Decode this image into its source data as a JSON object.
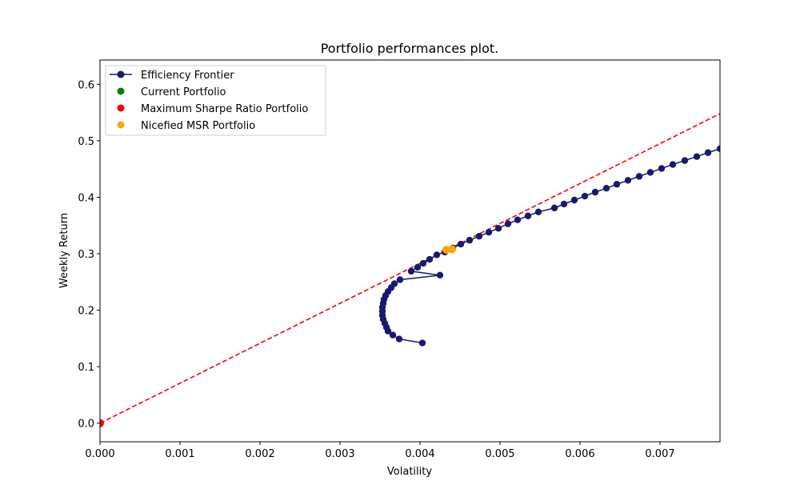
{
  "chart_data": {
    "type": "scatter",
    "title": "Portfolio performances plot.",
    "xlabel": "Volatility",
    "ylabel": "Weekly Return",
    "xlim": [
      0,
      0.00775
    ],
    "ylim": [
      -0.033,
      0.643
    ],
    "xticks": [
      0,
      0.001,
      0.002,
      0.003,
      0.004,
      0.005,
      0.006,
      0.007
    ],
    "xtick_labels": [
      "0.000",
      "0.001",
      "0.002",
      "0.003",
      "0.004",
      "0.005",
      "0.006",
      "0.007"
    ],
    "yticks": [
      0,
      0.1,
      0.2,
      0.3,
      0.4,
      0.5,
      0.6
    ],
    "ytick_labels": [
      "0.0",
      "0.1",
      "0.2",
      "0.3",
      "0.4",
      "0.5",
      "0.6"
    ],
    "grid": false,
    "legend_position": "top-left",
    "series": [
      {
        "name": "Efficiency Frontier",
        "kind": "line-markers",
        "color": "#191970",
        "points": [
          [
            0.00403,
            0.142
          ],
          [
            0.00374,
            0.149
          ],
          [
            0.00366,
            0.156
          ],
          [
            0.0036,
            0.163
          ],
          [
            0.00358,
            0.17
          ],
          [
            0.00356,
            0.177
          ],
          [
            0.00354,
            0.184
          ],
          [
            0.00353,
            0.191
          ],
          [
            0.00353,
            0.198
          ],
          [
            0.00353,
            0.205
          ],
          [
            0.00354,
            0.212
          ],
          [
            0.00355,
            0.219
          ],
          [
            0.00357,
            0.226
          ],
          [
            0.0036,
            0.233
          ],
          [
            0.00364,
            0.24
          ],
          [
            0.00368,
            0.247
          ],
          [
            0.00375,
            0.254
          ],
          [
            0.00425,
            0.262
          ],
          [
            0.00389,
            0.269
          ],
          [
            0.00397,
            0.276
          ],
          [
            0.00404,
            0.283
          ],
          [
            0.00412,
            0.29
          ],
          [
            0.00421,
            0.298
          ],
          [
            0.00431,
            0.303
          ],
          [
            0.00441,
            0.31
          ],
          [
            0.00451,
            0.317
          ],
          [
            0.00462,
            0.324
          ],
          [
            0.00474,
            0.331
          ],
          [
            0.00486,
            0.338
          ],
          [
            0.00498,
            0.345
          ],
          [
            0.0051,
            0.353
          ],
          [
            0.00522,
            0.36
          ],
          [
            0.00535,
            0.367
          ],
          [
            0.00548,
            0.374
          ],
          [
            0.00568,
            0.381
          ],
          [
            0.0058,
            0.388
          ],
          [
            0.00593,
            0.395
          ],
          [
            0.00606,
            0.402
          ],
          [
            0.00619,
            0.409
          ],
          [
            0.00633,
            0.416
          ],
          [
            0.00646,
            0.423
          ],
          [
            0.0066,
            0.43
          ],
          [
            0.00674,
            0.437
          ],
          [
            0.00688,
            0.444
          ],
          [
            0.00702,
            0.451
          ],
          [
            0.00716,
            0.458
          ],
          [
            0.00731,
            0.465
          ],
          [
            0.00746,
            0.472
          ],
          [
            0.0076,
            0.479
          ],
          [
            0.00775,
            0.486
          ]
        ]
      },
      {
        "name": "Current Portfolio",
        "kind": "scatter",
        "color": "#008000",
        "points": []
      },
      {
        "name": "Maximum Sharpe Ratio Portfolio",
        "kind": "scatter",
        "color": "#ff0000",
        "points": [
          [
            0.0,
            0.0
          ]
        ]
      },
      {
        "name": "Nicefied MSR Portfolio",
        "kind": "scatter",
        "color": "#ffa500",
        "points": [
          [
            0.00433,
            0.307
          ],
          [
            0.0044,
            0.308
          ]
        ]
      }
    ],
    "reference_line": {
      "color": "#ff0000",
      "style": "dashed",
      "from": [
        0.0,
        0.0
      ],
      "to": [
        0.00775,
        0.548
      ]
    }
  }
}
